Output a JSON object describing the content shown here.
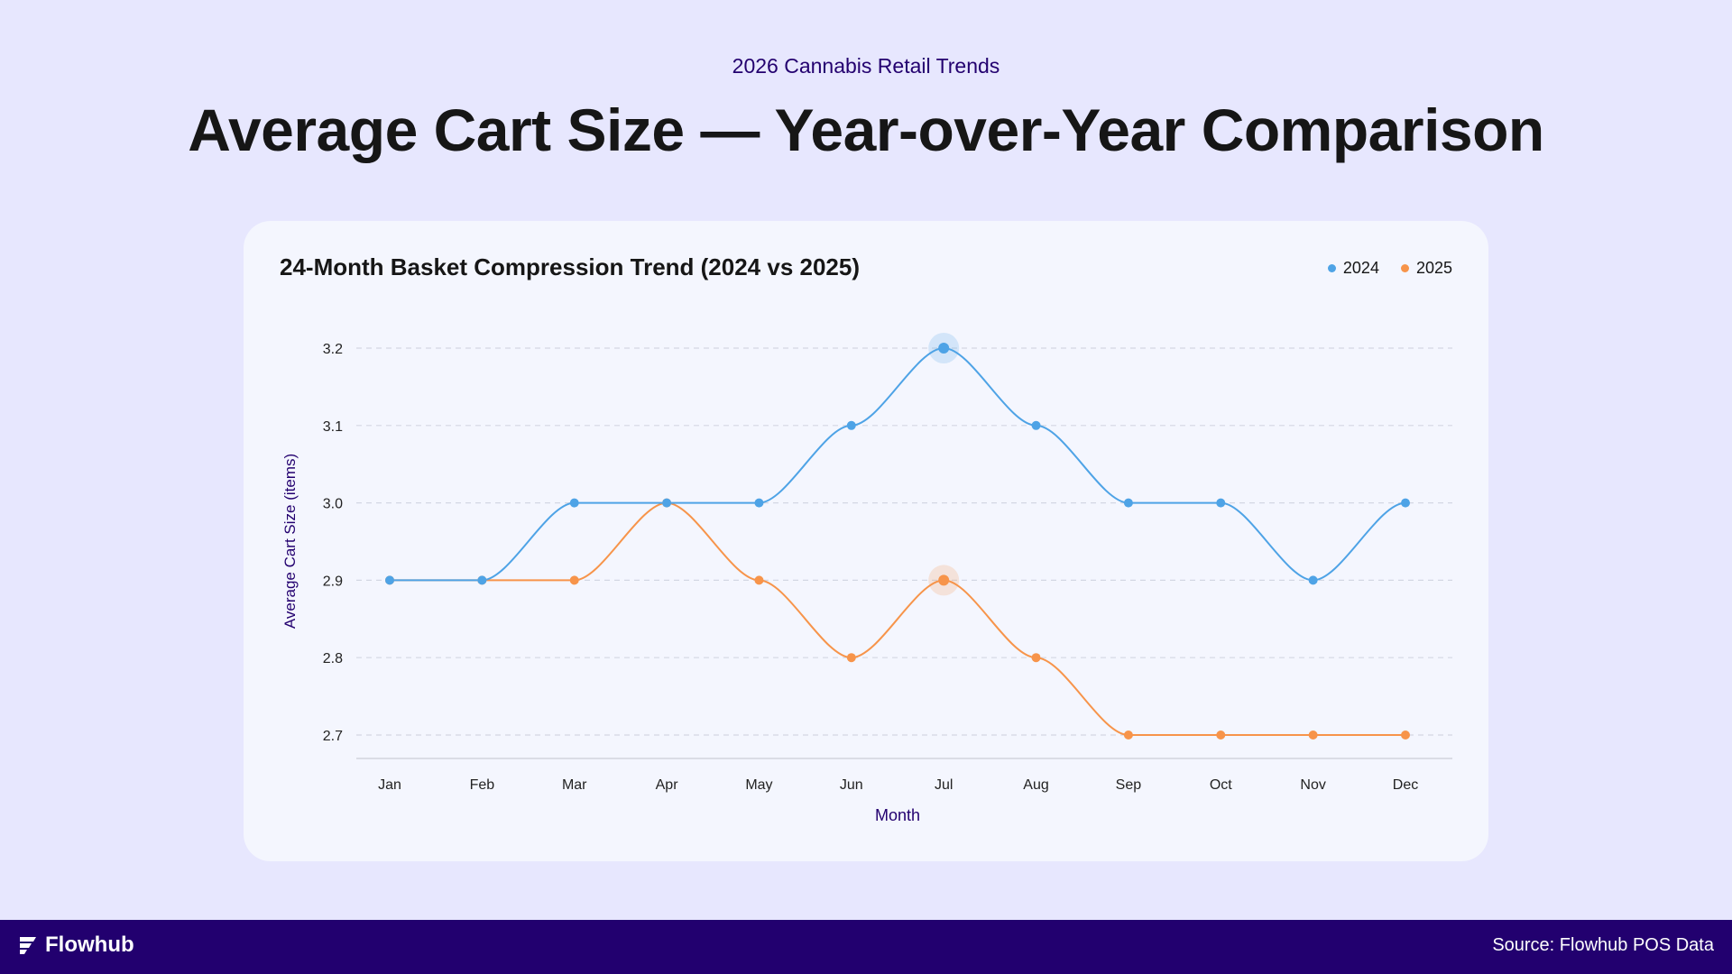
{
  "header": {
    "subtitle": "2026 Cannabis Retail Trends",
    "title": "Average Cart Size — Year-over-Year Comparison"
  },
  "footer": {
    "brand": "Flowhub",
    "source": "Source: Flowhub POS Data"
  },
  "colors": {
    "series_2024": "#4EA3E6",
    "series_2025": "#F7944A",
    "accent": "#22006F"
  },
  "chart_data": {
    "type": "line",
    "title": "24-Month Basket Compression Trend (2024 vs 2025)",
    "xlabel": "Month",
    "ylabel": "Average Cart Size (items)",
    "categories": [
      "Jan",
      "Feb",
      "Mar",
      "Apr",
      "May",
      "Jun",
      "Jul",
      "Aug",
      "Sep",
      "Oct",
      "Nov",
      "Dec"
    ],
    "ylim": [
      2.7,
      3.2
    ],
    "yticks": [
      "2.7",
      "2.8",
      "2.9",
      "3.0",
      "3.1",
      "3.2"
    ],
    "grid": true,
    "legend_position": "top-right",
    "series": [
      {
        "name": "2024",
        "color": "#4EA3E6",
        "values": [
          2.9,
          2.9,
          3.0,
          3.0,
          3.0,
          3.1,
          3.2,
          3.1,
          3.0,
          3.0,
          2.9,
          3.0
        ],
        "highlight": "Jul"
      },
      {
        "name": "2025",
        "color": "#F7944A",
        "values": [
          2.9,
          2.9,
          2.9,
          3.0,
          2.9,
          2.8,
          2.9,
          2.8,
          2.7,
          2.7,
          2.7,
          2.7
        ],
        "highlight": "Jul"
      }
    ]
  }
}
